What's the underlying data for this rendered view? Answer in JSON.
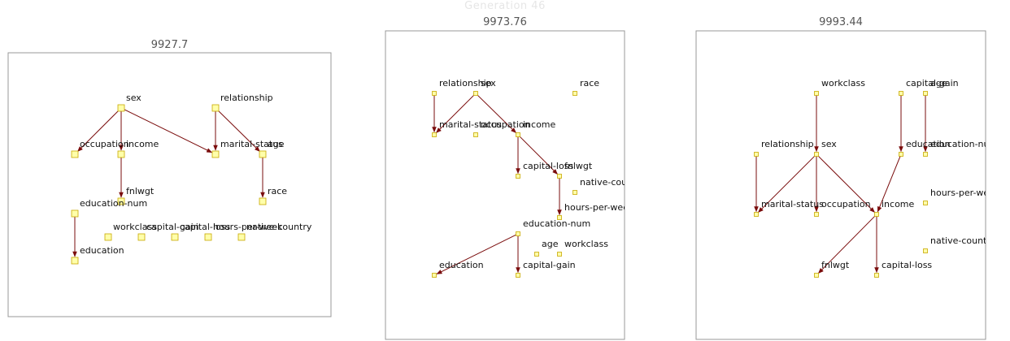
{
  "header": {
    "generation_label": "Generation 46"
  },
  "colors": {
    "edge": "#7a0c0c",
    "node_fill": "#ffffaa",
    "node_stroke": "#c8a800",
    "frame": "#999999"
  },
  "panels": [
    {
      "score": "9927.7",
      "nodes": [
        "sex",
        "relationship",
        "occupation",
        "income",
        "marital-status",
        "age",
        "fnlwgt",
        "education-num",
        "race",
        "workclass",
        "capital-gain",
        "capital-loss",
        "hours-per-week",
        "native-country",
        "education"
      ],
      "edges": [
        [
          "sex",
          "occupation"
        ],
        [
          "sex",
          "income"
        ],
        [
          "sex",
          "marital-status"
        ],
        [
          "relationship",
          "marital-status"
        ],
        [
          "relationship",
          "age"
        ],
        [
          "income",
          "fnlwgt"
        ],
        [
          "age",
          "race"
        ],
        [
          "education-num",
          "education"
        ]
      ]
    },
    {
      "score": "9973.76",
      "nodes": [
        "relationship",
        "sex",
        "race",
        "marital-status",
        "occupation",
        "income",
        "capital-loss",
        "fnlwgt",
        "native-country",
        "hours-per-week",
        "education-num",
        "age",
        "workclass",
        "education",
        "capital-gain"
      ],
      "edges": [
        [
          "relationship",
          "marital-status"
        ],
        [
          "sex",
          "marital-status"
        ],
        [
          "sex",
          "income"
        ],
        [
          "income",
          "capital-loss"
        ],
        [
          "income",
          "fnlwgt"
        ],
        [
          "fnlwgt",
          "hours-per-week"
        ],
        [
          "education-num",
          "education"
        ],
        [
          "education-num",
          "capital-gain"
        ]
      ]
    },
    {
      "score": "9993.44",
      "nodes": [
        "workclass",
        "capital-gain",
        "age",
        "relationship",
        "sex",
        "education",
        "education-num",
        "hours-per-week",
        "marital-status",
        "occupation",
        "income",
        "native-country",
        "fnlwgt",
        "capital-loss"
      ],
      "edges": [
        [
          "workclass",
          "sex"
        ],
        [
          "capital-gain",
          "education"
        ],
        [
          "age",
          "education-num"
        ],
        [
          "relationship",
          "marital-status"
        ],
        [
          "sex",
          "marital-status"
        ],
        [
          "sex",
          "occupation"
        ],
        [
          "sex",
          "income"
        ],
        [
          "education",
          "income"
        ],
        [
          "income",
          "fnlwgt"
        ],
        [
          "income",
          "capital-loss"
        ]
      ]
    }
  ]
}
